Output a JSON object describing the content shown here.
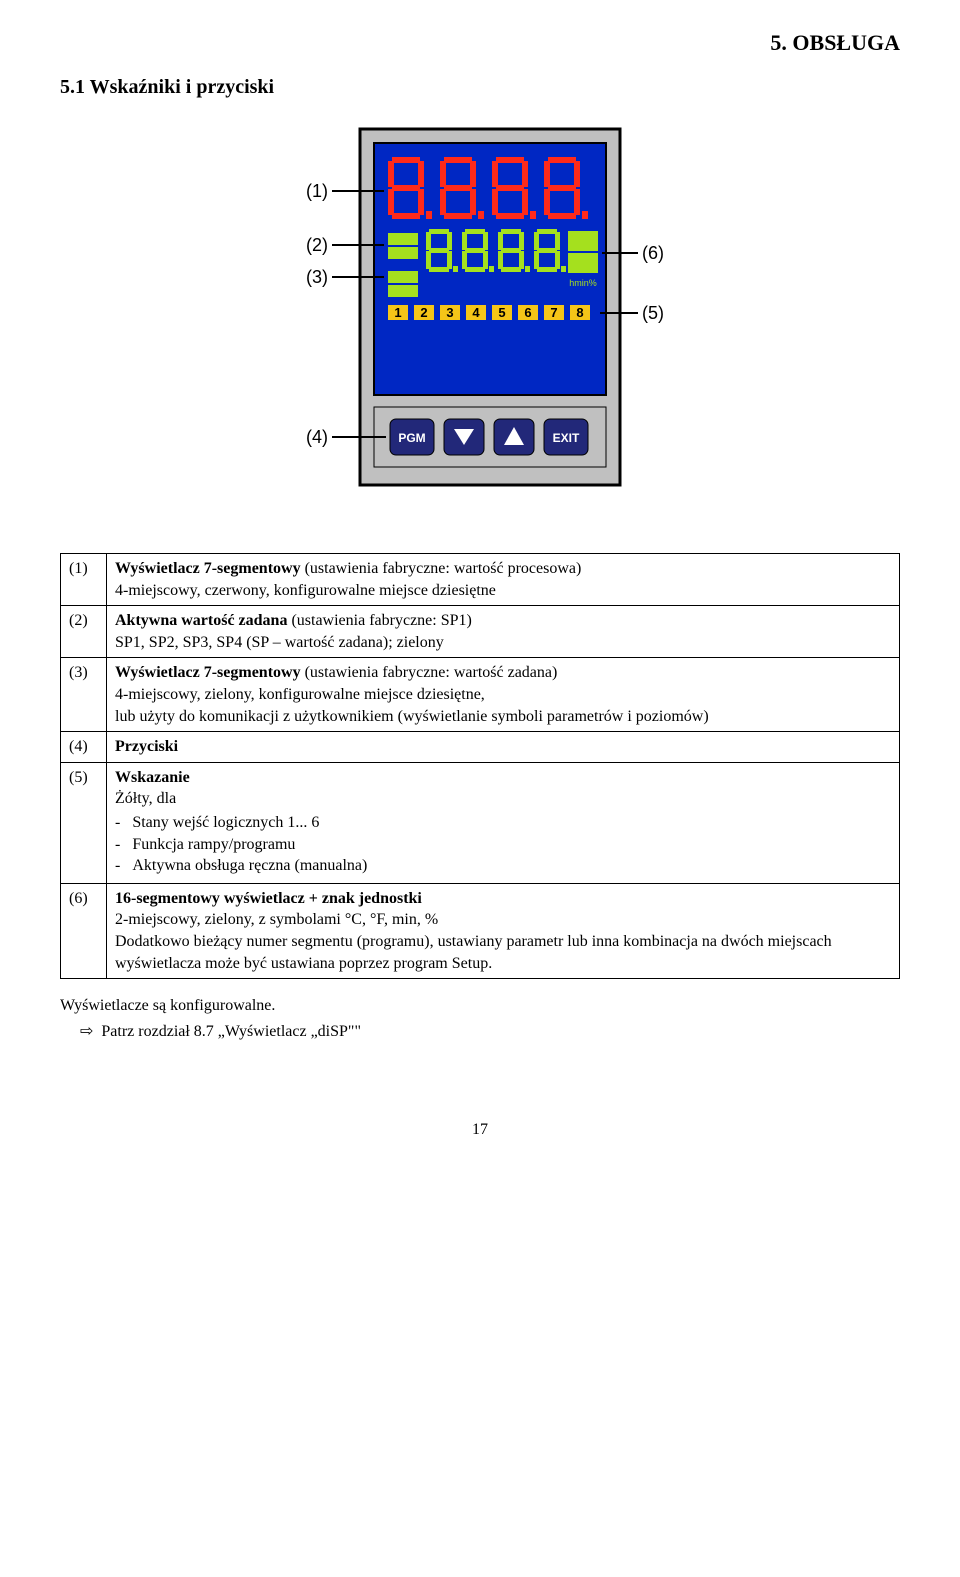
{
  "header": {
    "title": "5. OBSŁUGA"
  },
  "section": {
    "title": "5.1 Wskaźniki i przyciski"
  },
  "device": {
    "labels": {
      "l1": "(1)",
      "l2": "(2)",
      "l3": "(3)",
      "l4": "(4)",
      "l5": "(5)",
      "l6": "(6)"
    },
    "display1_text": "8.8.8.8",
    "display2_text": "8.8.8.8",
    "unit_text": "hmin%",
    "row3_numbers": [
      "1",
      "2",
      "3",
      "4",
      "5",
      "6",
      "7",
      "8"
    ],
    "buttons": {
      "pgm": "PGM",
      "down": "▼",
      "up": "▲",
      "exit": "EXIT"
    },
    "colors": {
      "panel_bg": "#0027c3",
      "panel_border": "#000000",
      "gray": "#c0c0c0",
      "red_seg": "#ff2a1a",
      "yellowgreen_seg": "#a5e01e",
      "btn_bg": "#222879",
      "btn_text": "#ffffff"
    }
  },
  "table": {
    "rows": [
      {
        "num": "(1)",
        "title": "Wyświetlacz 7-segmentowy",
        "title_suffix": " (ustawienia fabryczne: wartość procesowa)",
        "rest": "4-miejscowy, czerwony, konfigurowalne miejsce dziesiętne"
      },
      {
        "num": "(2)",
        "title": "Aktywna wartość zadana",
        "title_suffix": " (ustawienia fabryczne: SP1)",
        "rest": "SP1, SP2, SP3, SP4 (SP – wartość zadana); zielony"
      },
      {
        "num": "(3)",
        "title": "Wyświetlacz 7-segmentowy",
        "title_suffix": " (ustawienia fabryczne: wartość zadana)",
        "rest": "4-miejscowy, zielony, konfigurowalne miejsce dziesiętne,\nlub użyty do komunikacji z użytkownikiem (wyświetlanie symboli parametrów i poziomów)"
      },
      {
        "num": "(4)",
        "title": "Przyciski",
        "title_suffix": "",
        "rest": ""
      },
      {
        "num": "(5)",
        "title": "Wskazanie",
        "title_suffix": "",
        "pre": "Żółty, dla",
        "bullets": [
          "Stany wejść logicznych 1... 6",
          "Funkcja rampy/programu",
          "Aktywna obsługa ręczna (manualna)"
        ]
      },
      {
        "num": "(6)",
        "title": "16-segmentowy wyświetlacz + znak jednostki",
        "title_suffix": "",
        "rest": "2-miejscowy, zielony, z symbolami °C, °F, min, %\nDodatkowo bieżący numer segmentu (programu), ustawiany parametr lub inna kombinacja na dwóch miejscach wyświetlacza może być ustawiana poprzez program Setup."
      }
    ]
  },
  "footer": {
    "line1": "Wyświetlacze są konfigurowalne.",
    "line2_prefix": "⇨",
    "line2": "Patrz rozdział 8.7 „Wyświetlacz „diSP\"\""
  },
  "page_number": "17"
}
